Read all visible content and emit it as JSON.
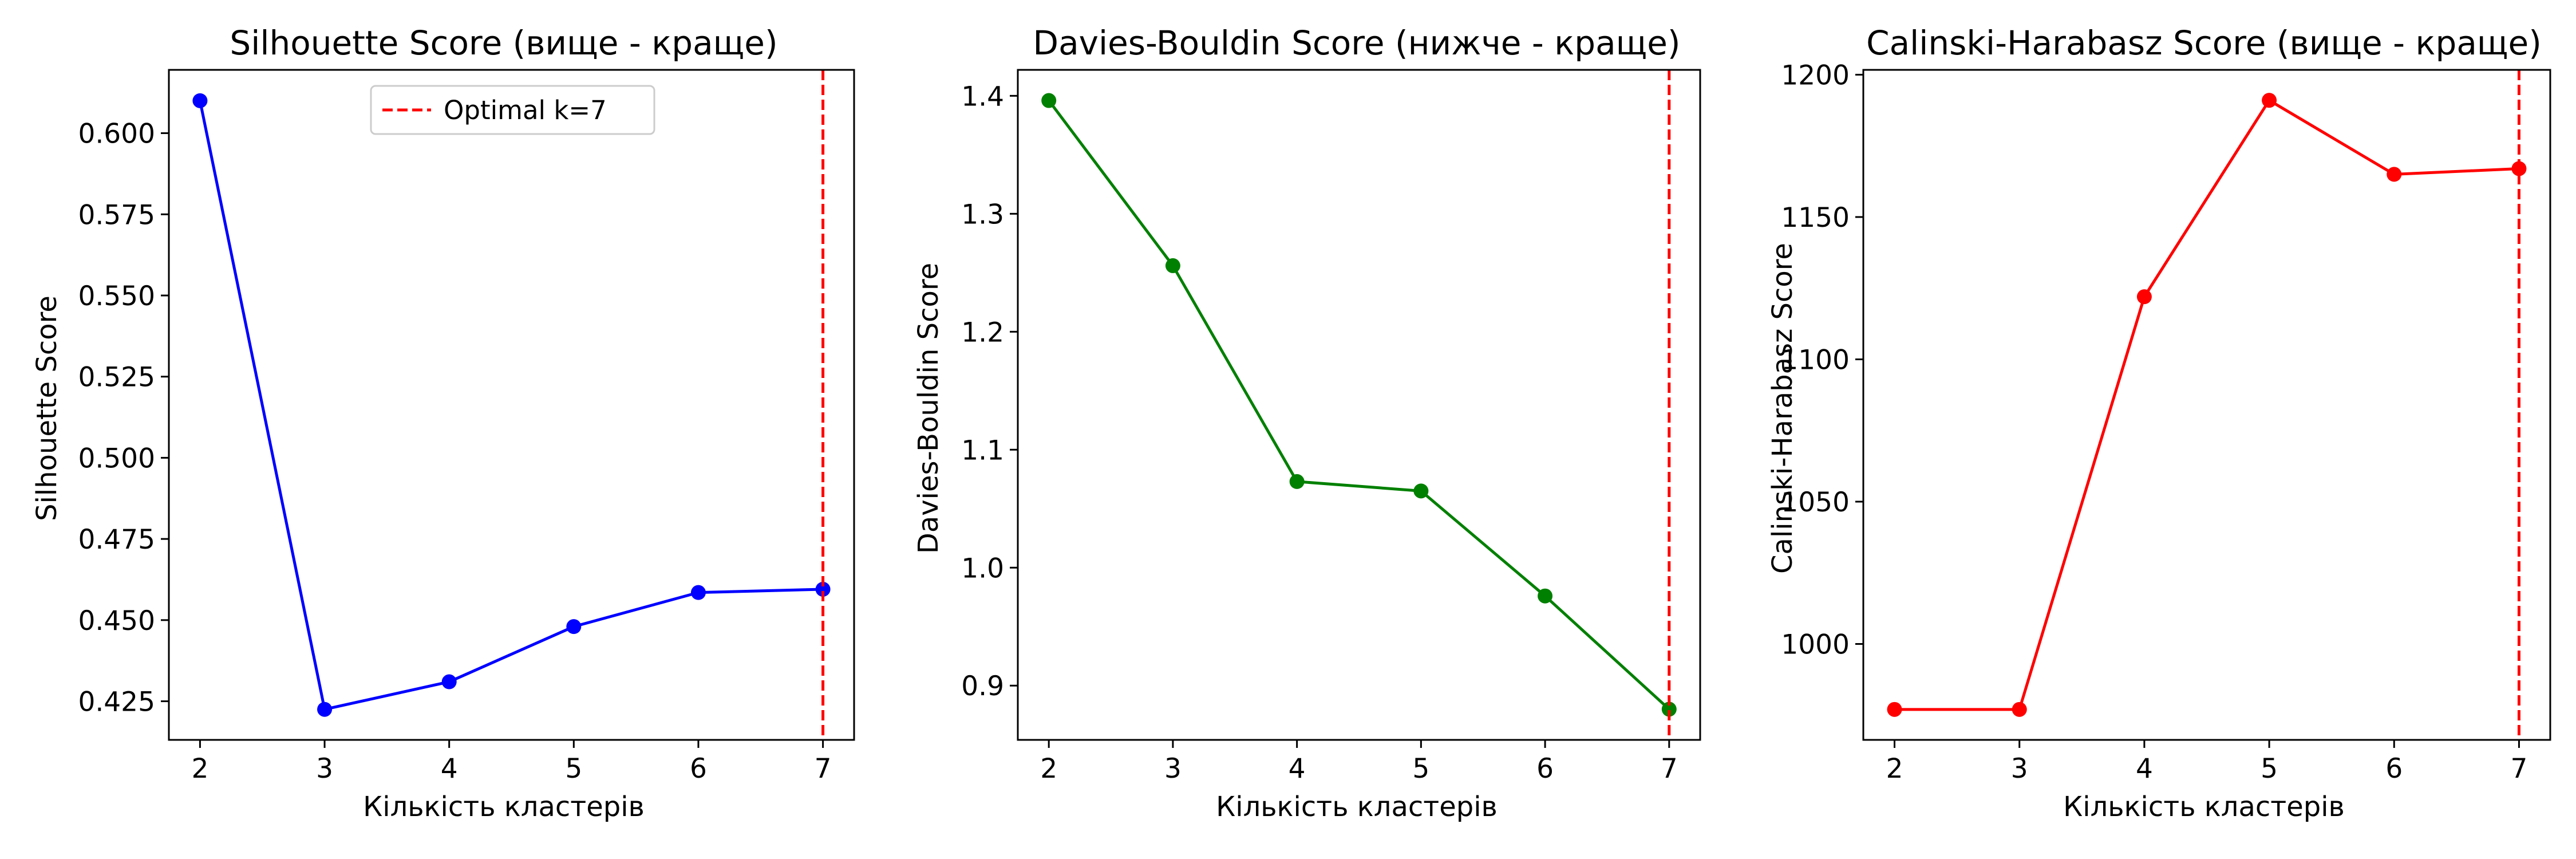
{
  "chart_data": [
    {
      "type": "line",
      "title": "Silhouette Score (вище - краще)",
      "xlabel": "Кількість кластерів",
      "ylabel": "Silhouette Score",
      "x": [
        2,
        3,
        4,
        5,
        6,
        7
      ],
      "series": [
        {
          "values": [
            0.61,
            0.4225,
            0.431,
            0.448,
            0.4585,
            0.4595
          ],
          "color": "#0000ff"
        }
      ],
      "xticks": [
        "2",
        "3",
        "4",
        "5",
        "6",
        "7"
      ],
      "yticks": [
        "0.425",
        "0.450",
        "0.475",
        "0.500",
        "0.525",
        "0.550",
        "0.575",
        "0.600"
      ],
      "ytick_values": [
        0.425,
        0.45,
        0.475,
        0.5,
        0.525,
        0.55,
        0.575,
        0.6
      ],
      "xlim": [
        1.75,
        7.25
      ],
      "ylim": [
        0.4131,
        0.6195
      ],
      "vline": {
        "x": 7,
        "color": "#ff0000",
        "style": "dashed",
        "label": "Optimal k=7"
      },
      "legend": "upper-center",
      "grid": false
    },
    {
      "type": "line",
      "title": "Davies-Bouldin Score (нижче - краще)",
      "xlabel": "Кількість кластерів",
      "ylabel": "Davies-Bouldin Score",
      "x": [
        2,
        3,
        4,
        5,
        6,
        7
      ],
      "series": [
        {
          "values": [
            1.396,
            1.256,
            1.073,
            1.065,
            0.976,
            0.88
          ],
          "color": "#008000"
        }
      ],
      "xticks": [
        "2",
        "3",
        "4",
        "5",
        "6",
        "7"
      ],
      "yticks": [
        "0.9",
        "1.0",
        "1.1",
        "1.2",
        "1.3",
        "1.4"
      ],
      "ytick_values": [
        0.9,
        1.0,
        1.1,
        1.2,
        1.3,
        1.4
      ],
      "xlim": [
        1.75,
        7.25
      ],
      "ylim": [
        0.854,
        1.422
      ],
      "vline": {
        "x": 7,
        "color": "#ff0000",
        "style": "dashed"
      },
      "grid": false
    },
    {
      "type": "line",
      "title": "Calinski-Harabasz Score (вище - краще)",
      "xlabel": "Кількість кластерів",
      "ylabel": "Calinski-Harabasz Score",
      "x": [
        2,
        3,
        4,
        5,
        6,
        7
      ],
      "series": [
        {
          "values": [
            977,
            977,
            1122,
            1191,
            1165,
            1167
          ],
          "color": "#ff0000"
        }
      ],
      "xticks": [
        "2",
        "3",
        "4",
        "5",
        "6",
        "7"
      ],
      "yticks": [
        "1000",
        "1050",
        "1100",
        "1150",
        "1200"
      ],
      "ytick_values": [
        1000,
        1050,
        1100,
        1150,
        1200
      ],
      "xlim": [
        1.75,
        7.25
      ],
      "ylim": [
        966.3,
        1201.7
      ],
      "vline": {
        "x": 7,
        "color": "#ff0000",
        "style": "dashed"
      },
      "grid": false
    }
  ]
}
